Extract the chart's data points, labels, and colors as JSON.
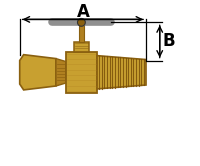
{
  "bg_color": "#ffffff",
  "brass_color": "#c8a030",
  "brass_dark": "#8a6010",
  "brass_mid": "#b08020",
  "thread_color": "#7a5008",
  "handle_color": "#909090",
  "dim_color": "#000000",
  "fig_width": 2.0,
  "fig_height": 1.66,
  "dpi": 100,
  "label_A": "A",
  "label_B": "B"
}
